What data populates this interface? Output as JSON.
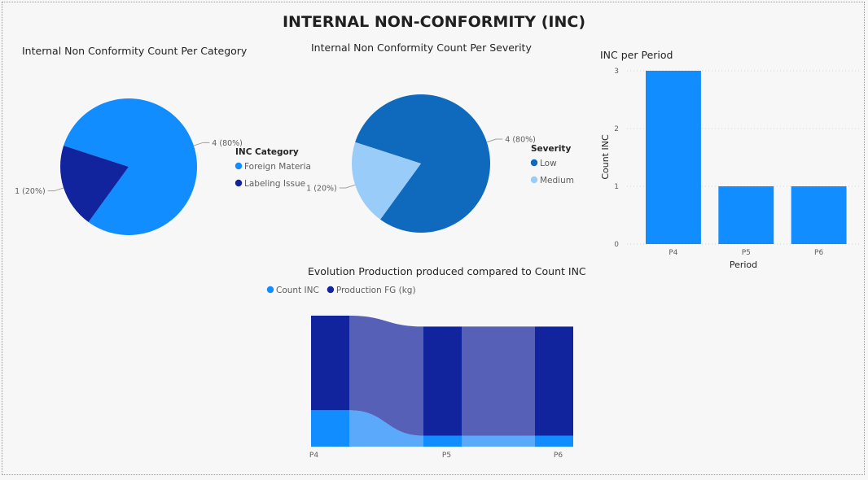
{
  "page": {
    "title": "INTERNAL NON-CONFORMITY (INC)"
  },
  "chart_data": [
    {
      "id": "category_pie",
      "type": "pie",
      "title": "Internal Non Conformity Count Per Category",
      "legend_title": "INC Category",
      "legend_position": "right",
      "slices": [
        {
          "name": "Foreign Materia",
          "value": 4,
          "label": "4 (80%)",
          "color": "#118DFF"
        },
        {
          "name": "Labeling Issue",
          "value": 1,
          "label": "1 (20%)",
          "color": "#12239E"
        }
      ]
    },
    {
      "id": "severity_pie",
      "type": "pie",
      "title": "Internal Non Conformity Count Per Severity",
      "legend_title": "Severity",
      "legend_position": "right",
      "slices": [
        {
          "name": "Low",
          "value": 4,
          "label": "4 (80%)",
          "color": "#0F69BD"
        },
        {
          "name": "Medium",
          "value": 1,
          "label": "1 (20%)",
          "color": "#99CCF8"
        }
      ]
    },
    {
      "id": "period_bar",
      "type": "bar",
      "title": "INC per Period",
      "categories": [
        "P4",
        "P5",
        "P6"
      ],
      "values": [
        3,
        1,
        1
      ],
      "xlabel": "Period",
      "ylabel": "Count INC",
      "ylim": [
        0,
        3
      ],
      "yticks": [
        "0",
        "1",
        "2",
        "3"
      ],
      "color": "#118DFF",
      "grid": true
    },
    {
      "id": "ribbon",
      "type": "area",
      "title": "Evolution Production produced compared to Count INC",
      "legend_position": "top-left",
      "categories": [
        "P4",
        "P5",
        "P6"
      ],
      "ylim": [
        0,
        3.6
      ],
      "series": [
        {
          "name": "Count INC",
          "values": [
            1.0,
            0.3,
            0.3
          ],
          "color": "#118DFF"
        },
        {
          "name": "Production FG (kg)",
          "values": [
            2.6,
            3.0,
            3.0
          ],
          "color": "#12239E"
        }
      ]
    }
  ]
}
